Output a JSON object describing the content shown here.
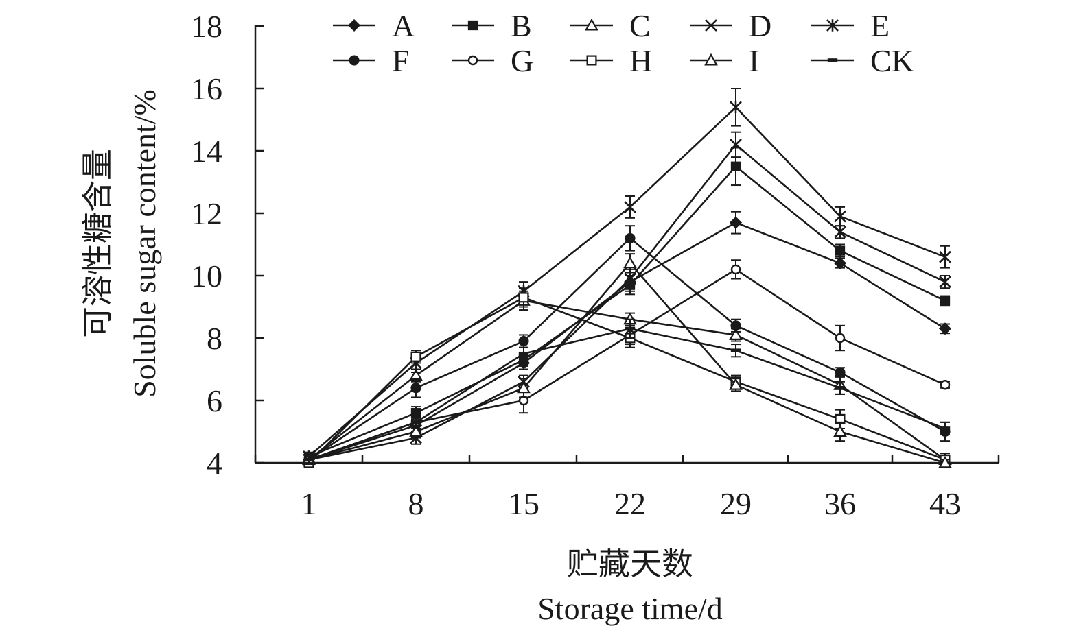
{
  "chart_data": {
    "type": "line",
    "xlabel_cn": "贮藏天数",
    "xlabel": "Storage time/d",
    "ylabel_cn": "可溶性糖含量",
    "ylabel": "Soluble sugar content/%",
    "x": [
      1,
      8,
      15,
      22,
      29,
      36,
      43
    ],
    "x_ticks": [
      "1",
      "8",
      "15",
      "22",
      "29",
      "36",
      "43"
    ],
    "ylim": [
      4,
      18
    ],
    "y_ticks": [
      "4",
      "6",
      "8",
      "10",
      "12",
      "14",
      "16",
      "18"
    ],
    "grid": false,
    "legend_position": "top",
    "series_color": "#1a1a1a",
    "series": [
      {
        "name": "A",
        "marker": "diamond",
        "values": [
          4.1,
          5.2,
          7.2,
          9.8,
          11.7,
          10.4,
          8.3
        ],
        "errors": [
          0.1,
          0.2,
          0.2,
          0.3,
          0.35,
          0.15,
          0.15
        ]
      },
      {
        "name": "B",
        "marker": "square",
        "values": [
          4.2,
          5.6,
          7.3,
          9.7,
          13.5,
          10.8,
          9.2
        ],
        "errors": [
          0.1,
          0.2,
          0.2,
          0.3,
          0.6,
          0.2,
          0.15
        ]
      },
      {
        "name": "C",
        "marker": "triangle-open",
        "values": [
          4.1,
          6.8,
          9.2,
          8.6,
          8.1,
          6.5,
          4.1
        ],
        "errors": [
          0.1,
          0.2,
          0.3,
          0.2,
          0.2,
          0.3,
          0.2
        ]
      },
      {
        "name": "D",
        "marker": "x",
        "values": [
          4.1,
          4.8,
          6.6,
          9.9,
          14.2,
          11.4,
          9.8
        ],
        "errors": [
          0.1,
          0.2,
          0.2,
          0.3,
          0.4,
          0.2,
          0.2
        ]
      },
      {
        "name": "E",
        "marker": "asterisk",
        "values": [
          4.2,
          7.2,
          9.5,
          12.2,
          15.4,
          11.9,
          10.6
        ],
        "errors": [
          0.1,
          0.3,
          0.3,
          0.35,
          0.6,
          0.3,
          0.35
        ]
      },
      {
        "name": "F",
        "marker": "circle",
        "values": [
          4.1,
          6.4,
          7.9,
          11.2,
          8.4,
          6.9,
          5.0
        ],
        "errors": [
          0.1,
          0.3,
          0.2,
          0.4,
          0.2,
          0.15,
          0.3
        ]
      },
      {
        "name": "G",
        "marker": "circle-open",
        "values": [
          4.1,
          5.3,
          6.0,
          8.1,
          10.2,
          8.0,
          6.5
        ],
        "errors": [
          0.1,
          0.2,
          0.4,
          0.3,
          0.3,
          0.4,
          0.1
        ]
      },
      {
        "name": "H",
        "marker": "square-open",
        "values": [
          4.0,
          7.4,
          9.3,
          8.0,
          6.6,
          5.4,
          4.1
        ],
        "errors": [
          0.1,
          0.2,
          0.3,
          0.3,
          0.2,
          0.3,
          0.1
        ]
      },
      {
        "name": "I",
        "marker": "triangle-open-2",
        "values": [
          4.1,
          5.0,
          6.4,
          10.4,
          6.5,
          5.0,
          4.0
        ],
        "errors": [
          0.1,
          0.2,
          0.3,
          0.3,
          0.2,
          0.3,
          0.1
        ]
      },
      {
        "name": "CK",
        "marker": "dash",
        "values": [
          4.1,
          5.3,
          7.5,
          8.3,
          7.6,
          6.4,
          5.1
        ],
        "errors": [
          0.1,
          0.2,
          0.2,
          0.3,
          0.2,
          0.2,
          0.2
        ]
      }
    ]
  }
}
